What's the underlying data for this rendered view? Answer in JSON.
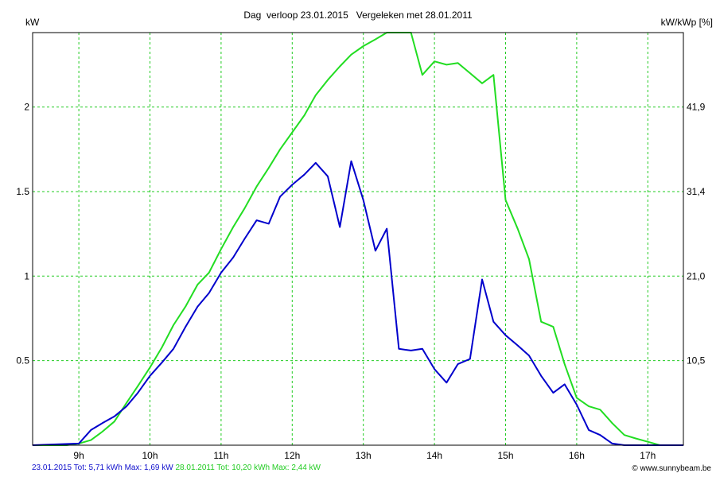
{
  "chart_data": {
    "type": "line",
    "title": "Dag  verloop 23.01.2015   Vergeleken met 28.01.2011",
    "ylabel_left": "kW",
    "ylabel_right": "kW/kWp [%]",
    "xlim": [
      8.35,
      17.5
    ],
    "ylim": [
      0,
      2.44
    ],
    "x_ticks": [
      9,
      10,
      11,
      12,
      13,
      14,
      15,
      16,
      17
    ],
    "x_tick_labels": [
      "9h",
      "10h",
      "11h",
      "12h",
      "13h",
      "14h",
      "15h",
      "16h",
      "17h"
    ],
    "y_ticks_left": [
      0.5,
      1,
      1.5,
      2
    ],
    "y_tick_labels_left": [
      "0.5",
      "1",
      "1.5",
      "2"
    ],
    "y_tick_labels_right": [
      "10,5",
      "21,0",
      "31,4",
      "41,9"
    ],
    "grid": true,
    "series": [
      {
        "name": "23.01.2015 Tot: 5,71 kWh Max: 1,69 kW",
        "color": "#0000cc",
        "x": [
          8.35,
          9.0,
          9.17,
          9.33,
          9.5,
          9.67,
          9.83,
          10.0,
          10.17,
          10.33,
          10.5,
          10.67,
          10.83,
          11.0,
          11.17,
          11.33,
          11.5,
          11.67,
          11.83,
          12.0,
          12.17,
          12.33,
          12.5,
          12.67,
          12.83,
          13.0,
          13.17,
          13.33,
          13.5,
          13.67,
          13.83,
          14.0,
          14.17,
          14.33,
          14.5,
          14.67,
          14.83,
          15.0,
          15.17,
          15.33,
          15.5,
          15.67,
          15.83,
          16.0,
          16.17,
          16.33,
          16.5,
          16.67,
          17.0,
          17.5
        ],
        "y": [
          0,
          0.01,
          0.09,
          0.13,
          0.17,
          0.23,
          0.31,
          0.41,
          0.49,
          0.57,
          0.7,
          0.82,
          0.9,
          1.02,
          1.11,
          1.22,
          1.33,
          1.31,
          1.47,
          1.54,
          1.6,
          1.67,
          1.59,
          1.29,
          1.68,
          1.45,
          1.15,
          1.28,
          0.57,
          0.56,
          0.57,
          0.45,
          0.37,
          0.48,
          0.51,
          0.98,
          0.73,
          0.65,
          0.59,
          0.53,
          0.41,
          0.31,
          0.36,
          0.24,
          0.09,
          0.06,
          0.01,
          0.0,
          0.0,
          0.0
        ]
      },
      {
        "name": "28.01.2011 Tot: 10,20 kWh Max: 2,44 kW",
        "color": "#22dd22",
        "x": [
          8.35,
          8.83,
          9.0,
          9.17,
          9.33,
          9.5,
          9.67,
          9.83,
          10.0,
          10.17,
          10.33,
          10.5,
          10.67,
          10.83,
          11.0,
          11.17,
          11.33,
          11.5,
          11.67,
          11.83,
          12.0,
          12.17,
          12.33,
          12.5,
          12.67,
          12.83,
          13.0,
          13.17,
          13.33,
          13.5,
          13.67,
          13.83,
          14.0,
          14.17,
          14.33,
          14.5,
          14.67,
          14.83,
          15.0,
          15.17,
          15.33,
          15.5,
          15.67,
          15.83,
          16.0,
          16.17,
          16.33,
          16.5,
          16.67,
          16.83,
          17.0,
          17.17,
          17.5
        ],
        "y": [
          0,
          0.0,
          0.01,
          0.03,
          0.08,
          0.14,
          0.25,
          0.35,
          0.46,
          0.58,
          0.71,
          0.82,
          0.95,
          1.02,
          1.16,
          1.29,
          1.4,
          1.53,
          1.64,
          1.75,
          1.85,
          1.95,
          2.07,
          2.16,
          2.24,
          2.31,
          2.36,
          2.4,
          2.44,
          2.44,
          2.44,
          2.19,
          2.27,
          2.25,
          2.26,
          2.2,
          2.14,
          2.19,
          1.45,
          1.28,
          1.1,
          0.73,
          0.7,
          0.48,
          0.28,
          0.23,
          0.21,
          0.13,
          0.06,
          0.04,
          0.02,
          0.0,
          0.0
        ]
      }
    ],
    "footer_credit": "© www.sunnybeam.be"
  }
}
